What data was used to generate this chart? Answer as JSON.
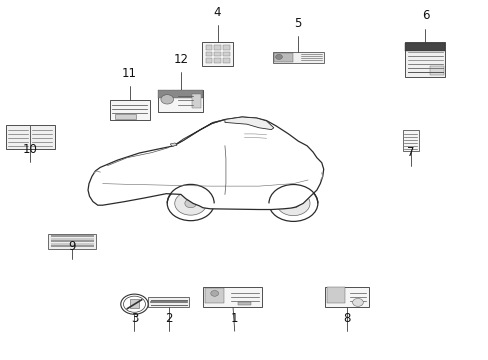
{
  "title": "",
  "bg_color": "#ffffff",
  "fig_width": 4.89,
  "fig_height": 3.6,
  "dpi": 100,
  "labels": [
    {
      "num": "1",
      "nx": 0.48,
      "ny": 0.08,
      "sx": 0.475,
      "sy": 0.175,
      "type": "sticker_wide_complex"
    },
    {
      "num": "2",
      "nx": 0.345,
      "ny": 0.08,
      "sx": 0.345,
      "sy": 0.16,
      "type": "sticker_wide"
    },
    {
      "num": "3",
      "nx": 0.275,
      "ny": 0.08,
      "sx": 0.275,
      "sy": 0.155,
      "type": "circle_no"
    },
    {
      "num": "4",
      "nx": 0.445,
      "ny": 0.93,
      "sx": 0.445,
      "sy": 0.85,
      "type": "sticker_sq"
    },
    {
      "num": "5",
      "nx": 0.61,
      "ny": 0.9,
      "sx": 0.61,
      "sy": 0.84,
      "type": "sticker_wide_bw"
    },
    {
      "num": "6",
      "nx": 0.87,
      "ny": 0.92,
      "sx": 0.87,
      "sy": 0.835,
      "type": "sticker_rect_tall"
    },
    {
      "num": "7",
      "nx": 0.84,
      "ny": 0.54,
      "sx": 0.84,
      "sy": 0.61,
      "type": "sticker_small_rect"
    },
    {
      "num": "8",
      "nx": 0.71,
      "ny": 0.08,
      "sx": 0.71,
      "sy": 0.175,
      "type": "sticker_rect_med"
    },
    {
      "num": "9",
      "nx": 0.148,
      "ny": 0.28,
      "sx": 0.148,
      "sy": 0.33,
      "type": "sticker_wide_lines"
    },
    {
      "num": "10",
      "nx": 0.062,
      "ny": 0.55,
      "sx": 0.062,
      "sy": 0.62,
      "type": "sticker_book"
    },
    {
      "num": "11",
      "nx": 0.265,
      "ny": 0.76,
      "sx": 0.265,
      "sy": 0.695,
      "type": "sticker_rect_med2"
    },
    {
      "num": "12",
      "nx": 0.37,
      "ny": 0.8,
      "sx": 0.37,
      "sy": 0.72,
      "type": "sticker_rect_logo"
    }
  ]
}
